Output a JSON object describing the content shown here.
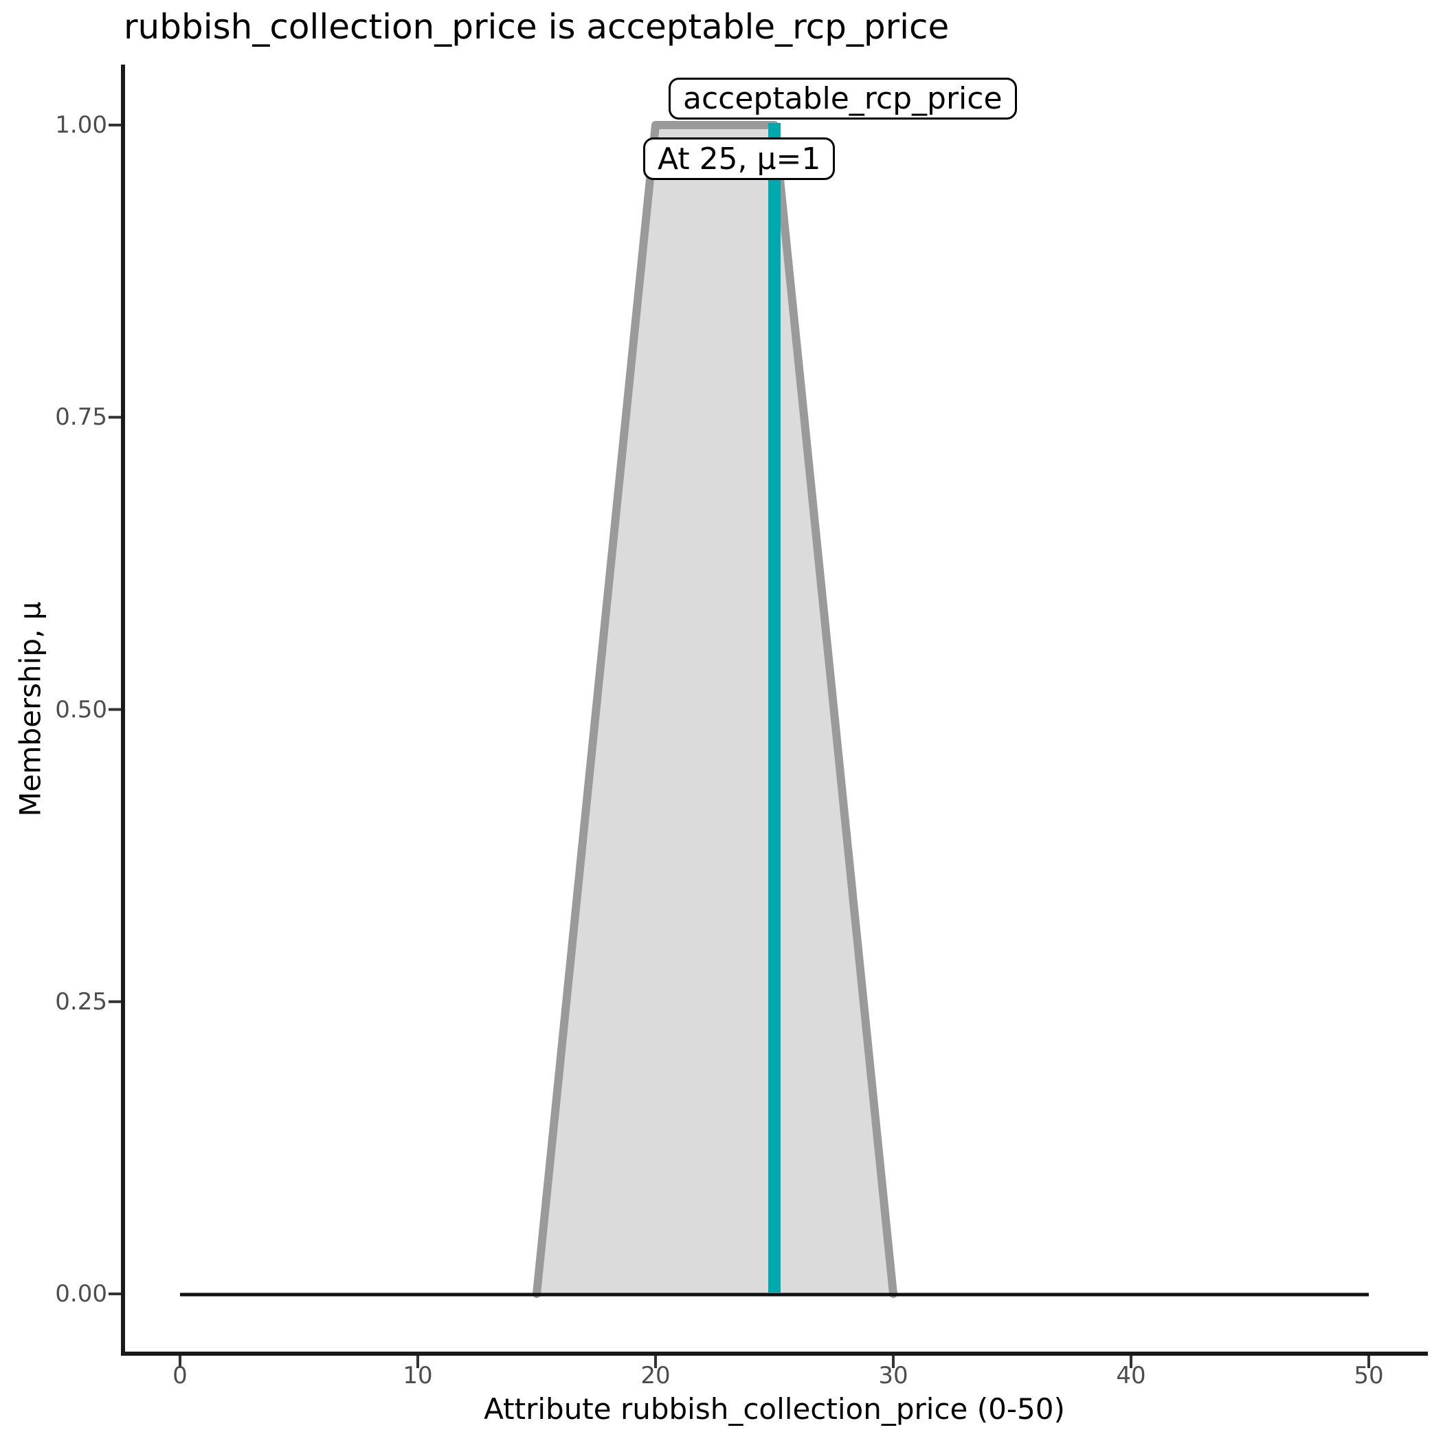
{
  "chart_data": {
    "type": "area",
    "title": "rubbish_collection_price is acceptable_rcp_price",
    "xlabel": "Attribute rubbish_collection_price (0-50)",
    "ylabel": "Membership, μ",
    "xlim": [
      0,
      50
    ],
    "ylim": [
      0,
      1
    ],
    "grid": false,
    "legend": false,
    "x_ticks": [
      {
        "label": "0",
        "value": 0
      },
      {
        "label": "10",
        "value": 10
      },
      {
        "label": "20",
        "value": 20
      },
      {
        "label": "30",
        "value": 30
      },
      {
        "label": "40",
        "value": 40
      },
      {
        "label": "50",
        "value": 50
      }
    ],
    "y_ticks": [
      {
        "label": "0.00",
        "value": 0
      },
      {
        "label": "0.25",
        "value": 0.25
      },
      {
        "label": "0.50",
        "value": 0.5
      },
      {
        "label": "0.75",
        "value": 0.75
      },
      {
        "label": "1.00",
        "value": 1
      }
    ],
    "membership_function": {
      "name": "acceptable_rcp_price",
      "shape": "trapezoid",
      "points": [
        [
          15,
          0
        ],
        [
          20,
          1
        ],
        [
          25,
          1
        ],
        [
          30,
          0
        ]
      ],
      "fill_color": "#DBDBDB",
      "line_color": "#9A9A9A"
    },
    "support_line": {
      "points": [
        [
          0,
          0
        ],
        [
          50,
          0
        ]
      ],
      "color": "#111111"
    },
    "crisp_input": {
      "x": 25,
      "mu": 1,
      "color": "#00A9AD"
    },
    "annotations": [
      {
        "label": "acceptable_rcp_price"
      },
      {
        "label": "At 25, μ=1"
      }
    ],
    "axis_color": "#1A1A1A",
    "tick_color": "#333333",
    "tick_label_color": "#4D4D4D"
  }
}
